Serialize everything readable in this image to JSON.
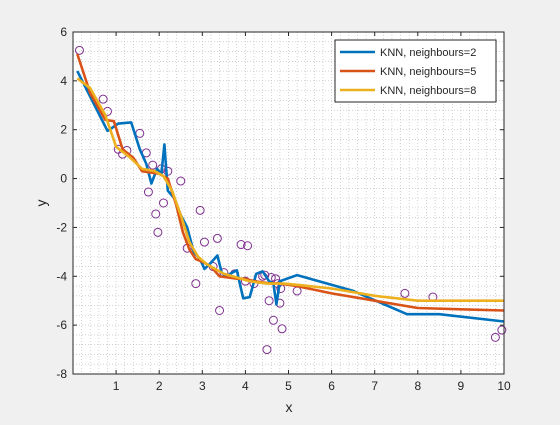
{
  "chart_data": {
    "type": "line",
    "title": "",
    "xlabel": "x",
    "ylabel": "y",
    "xlim": [
      0,
      10
    ],
    "ylim": [
      -8,
      6
    ],
    "xticks": [
      1,
      2,
      3,
      4,
      5,
      6,
      7,
      8,
      9,
      10
    ],
    "yticks": [
      -8,
      -6,
      -4,
      -2,
      0,
      2,
      4,
      6
    ],
    "grid": "minor dotted",
    "legend_position": "top-right",
    "scatter": {
      "marker": "circle",
      "color": "#7e2f8e",
      "x": [
        0.15,
        0.7,
        0.8,
        1.05,
        1.15,
        1.25,
        1.55,
        1.7,
        1.75,
        1.85,
        1.92,
        1.97,
        2.05,
        2.1,
        2.2,
        2.5,
        2.65,
        2.85,
        2.95,
        3.05,
        3.25,
        3.35,
        3.4,
        3.5,
        3.75,
        3.9,
        4.0,
        4.05,
        4.2,
        4.4,
        4.45,
        4.5,
        4.55,
        4.6,
        4.65,
        4.7,
        4.75,
        4.8,
        4.82,
        4.85,
        5.2,
        7.7,
        8.35,
        9.8,
        9.95
      ],
      "y": [
        5.25,
        3.25,
        2.75,
        1.2,
        1.0,
        1.15,
        1.85,
        1.05,
        -0.55,
        0.55,
        -1.45,
        -2.2,
        0.4,
        -1.0,
        0.3,
        -0.1,
        -2.85,
        -4.3,
        -1.3,
        -2.6,
        -3.6,
        -2.45,
        -5.4,
        -3.85,
        -3.9,
        -2.7,
        -4.2,
        -2.75,
        -4.3,
        -4.0,
        -3.95,
        -7.0,
        -5.0,
        -4.05,
        -5.8,
        -4.1,
        -4.3,
        -5.1,
        -4.5,
        -6.15,
        -4.6,
        -4.7,
        -4.85,
        -6.5,
        -6.2
      ]
    },
    "series": [
      {
        "name": "KNN, neighbours=2",
        "color": "#0072bd",
        "x": [
          0.1,
          0.8,
          1.05,
          1.35,
          1.55,
          1.7,
          1.82,
          1.95,
          2.05,
          2.12,
          2.2,
          2.35,
          2.5,
          2.65,
          2.8,
          2.95,
          3.05,
          3.2,
          3.35,
          3.45,
          3.55,
          3.65,
          3.8,
          3.95,
          4.1,
          4.25,
          4.4,
          4.55,
          4.65,
          4.72,
          4.8,
          5.2,
          6.5,
          7.75,
          8.5,
          10.0
        ],
        "y": [
          4.4,
          1.95,
          2.25,
          2.3,
          1.2,
          0.6,
          -0.2,
          0.4,
          0.2,
          1.4,
          -0.5,
          -0.8,
          -1.5,
          -2.0,
          -3.0,
          -3.3,
          -3.7,
          -3.45,
          -3.15,
          -3.85,
          -4.0,
          -3.9,
          -3.75,
          -4.9,
          -4.85,
          -3.9,
          -3.8,
          -4.2,
          -4.3,
          -5.15,
          -4.2,
          -3.95,
          -4.6,
          -5.55,
          -5.55,
          -5.85
        ]
      },
      {
        "name": "KNN, neighbours=5",
        "color": "#d95319",
        "x": [
          0.1,
          0.4,
          0.75,
          0.95,
          1.15,
          1.4,
          1.6,
          1.8,
          2.0,
          2.2,
          2.4,
          2.55,
          2.7,
          2.85,
          3.0,
          3.2,
          3.4,
          3.6,
          3.8,
          4.0,
          4.2,
          4.4,
          4.6,
          4.8,
          5.2,
          6.0,
          7.0,
          8.0,
          9.0,
          10.0
        ],
        "y": [
          5.1,
          3.5,
          2.4,
          2.35,
          1.2,
          0.85,
          0.3,
          0.25,
          0.2,
          0.0,
          -1.1,
          -2.2,
          -2.9,
          -3.3,
          -3.4,
          -3.6,
          -4.0,
          -4.05,
          -4.1,
          -4.1,
          -4.2,
          -4.25,
          -4.3,
          -4.3,
          -4.4,
          -4.7,
          -5.0,
          -5.3,
          -5.35,
          -5.4
        ]
      },
      {
        "name": "KNN, neighbours=8",
        "color": "#edb120",
        "x": [
          0.1,
          0.4,
          0.75,
          1.0,
          1.3,
          1.6,
          1.9,
          2.1,
          2.3,
          2.5,
          2.7,
          2.9,
          3.1,
          3.3,
          3.5,
          3.7,
          3.9,
          4.1,
          4.3,
          4.5,
          4.7,
          4.9,
          5.2,
          6.0,
          7.0,
          8.0,
          9.0,
          10.0
        ],
        "y": [
          4.1,
          3.7,
          2.6,
          1.3,
          0.9,
          0.4,
          0.3,
          0.1,
          -0.5,
          -1.5,
          -2.6,
          -3.2,
          -3.5,
          -3.7,
          -3.9,
          -4.0,
          -4.1,
          -4.2,
          -4.25,
          -4.3,
          -4.3,
          -4.3,
          -4.35,
          -4.5,
          -4.8,
          -5.0,
          -5.0,
          -5.0
        ]
      }
    ]
  }
}
